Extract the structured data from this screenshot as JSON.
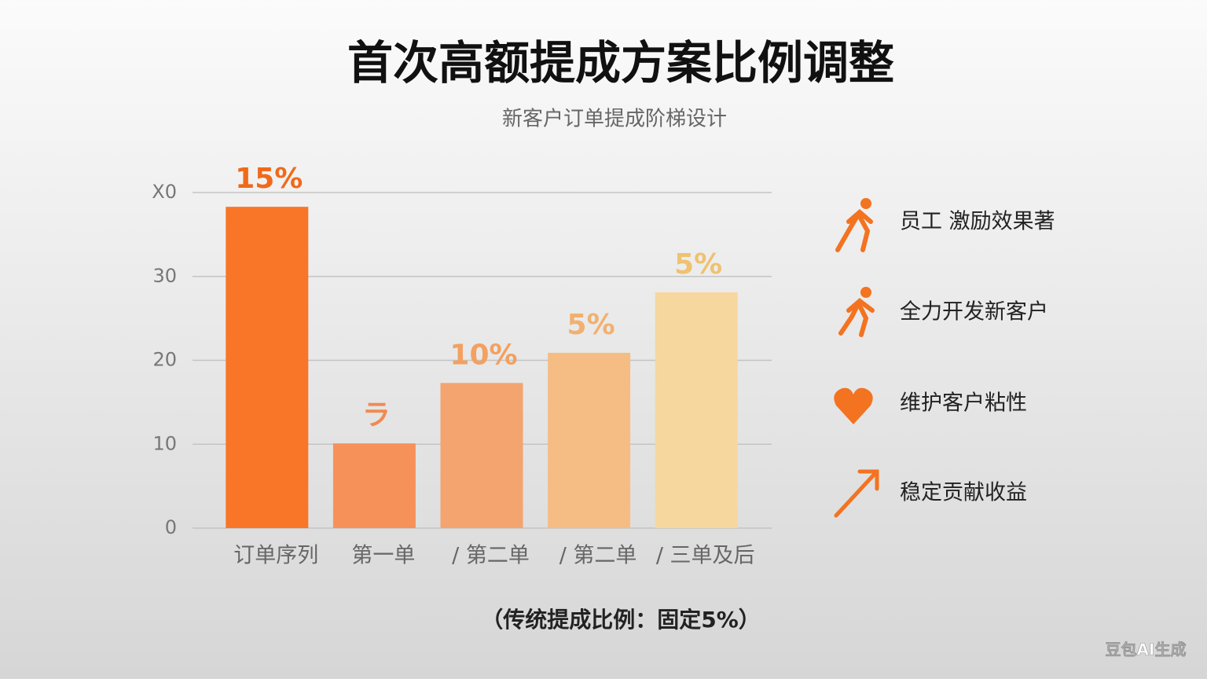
{
  "chart_data": {
    "type": "bar",
    "title": "首次高额提成方案比例调整",
    "subtitle": "新客户订单提成阶梯设计",
    "categories": [
      "订单序列",
      "第一单",
      "/ 第二单",
      "/ 第二单",
      "/ 三单及后"
    ],
    "values": [
      38.3,
      10.1,
      17.3,
      20.9,
      28.1
    ],
    "value_labels": [
      "15%",
      "ラ",
      "10%",
      "5%",
      "5%"
    ],
    "colors": [
      "#f97628",
      "#f7915a",
      "#f4a46e",
      "#f5bd84",
      "#f6d79e"
    ],
    "label_colors": [
      "#f06a1a",
      "#f28a50",
      "#f3a060",
      "#f2b070",
      "#eec270"
    ],
    "ylim": [
      0,
      40
    ],
    "yticks": [
      0,
      10,
      20,
      30,
      {
        "value": 40,
        "label": "X0"
      }
    ],
    "grid": true,
    "annotations": [
      "员工 激励效果著",
      "全力开发新客户",
      "维护客户粘性",
      "稳定贡献收益"
    ],
    "footnote": "（传统提成比例：固定5%）",
    "watermark": "豆包AI生成"
  }
}
